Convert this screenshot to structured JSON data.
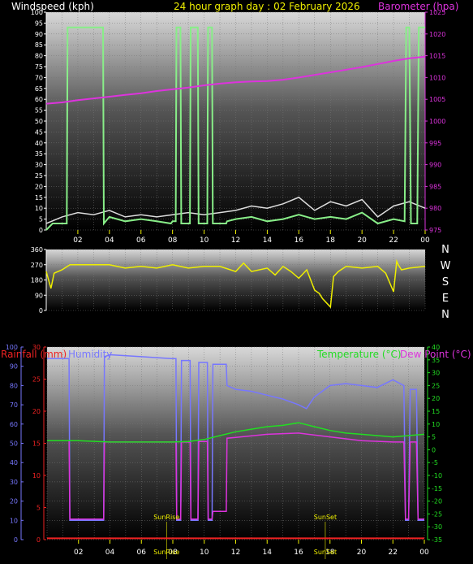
{
  "header": {
    "left": "Windspeed (kph)",
    "center": "24 hour graph day : 02 February 2026",
    "right": "Barometer (hpa)"
  },
  "lower_header": {
    "rainfall": "Rainfall (mm)",
    "humidity": "Humidity",
    "temperature": "Temperature (°C)",
    "dewpoint": "Dew Point (°C)"
  },
  "markers": {
    "sunrise": "SunRise",
    "sunset": "SunSet"
  },
  "colors": {
    "wind": "#88ee88",
    "gust": "#dddddd",
    "baro": "#dd33dd",
    "dir": "#eeee00",
    "rain": "#ee2222",
    "hum": "#7777ff",
    "temp": "#22dd22",
    "dew": "#dd33dd",
    "grid": "#555555"
  },
  "chart_data": [
    {
      "type": "line",
      "title": "24 hour graph day : 02 February 2026",
      "xlabel": "",
      "x_ticks": [
        "02",
        "04",
        "06",
        "08",
        "10",
        "12",
        "14",
        "16",
        "18",
        "20",
        "22",
        "00"
      ],
      "x_range": [
        0,
        24
      ],
      "y_left": {
        "label": "Windspeed (kph)",
        "range": [
          0,
          100
        ],
        "ticks": [
          0,
          5,
          10,
          15,
          20,
          25,
          30,
          35,
          40,
          45,
          50,
          55,
          60,
          65,
          70,
          75,
          80,
          85,
          90,
          95,
          100
        ]
      },
      "y_right": {
        "label": "Barometer (hpa)",
        "range": [
          975,
          1025
        ],
        "ticks": [
          975,
          980,
          985,
          990,
          995,
          1000,
          1005,
          1010,
          1015,
          1020,
          1025
        ]
      },
      "grid": true,
      "series": [
        {
          "name": "Windspeed (kph)",
          "axis": "left",
          "color": "#88ee88",
          "x": [
            0,
            0.4,
            1.3,
            1.35,
            3.6,
            3.65,
            4.0,
            5.0,
            6.0,
            7.0,
            7.9,
            8.0,
            8.2,
            8.25,
            8.5,
            8.55,
            9.1,
            9.15,
            9.6,
            9.65,
            10.2,
            10.25,
            10.5,
            10.55,
            11.4,
            11.45,
            12,
            13,
            14,
            15,
            16,
            17,
            18,
            19,
            20,
            21,
            22,
            22.7,
            22.8,
            23.0,
            23.1,
            23.5,
            23.6,
            24
          ],
          "y": [
            0,
            3,
            3,
            93,
            93,
            3,
            6,
            4,
            5,
            4,
            3,
            4,
            4,
            93,
            93,
            3,
            3,
            93,
            93,
            3,
            3,
            93,
            93,
            3,
            3,
            4,
            5,
            6,
            4,
            5,
            7,
            5,
            6,
            5,
            8,
            3,
            5,
            4,
            93,
            93,
            3,
            3,
            93,
            93
          ]
        },
        {
          "name": "Gust",
          "axis": "left",
          "color": "#dddddd",
          "x": [
            0,
            1,
            2,
            3,
            4,
            5,
            6,
            7,
            8,
            9,
            10,
            11,
            12,
            13,
            14,
            15,
            16,
            17,
            18,
            19,
            20,
            21,
            22,
            23,
            24
          ],
          "y": [
            3,
            6,
            8,
            7,
            9,
            6,
            7,
            6,
            7,
            8,
            7,
            8,
            9,
            11,
            10,
            12,
            15,
            9,
            13,
            11,
            14,
            6,
            11,
            13,
            10
          ]
        },
        {
          "name": "Barometer (hpa)",
          "axis": "right",
          "color": "#dd33dd",
          "x": [
            0,
            1,
            2,
            3,
            4,
            5,
            6,
            7,
            8,
            9,
            10,
            11,
            12,
            13,
            14,
            15,
            16,
            17,
            18,
            19,
            20,
            21,
            22,
            23,
            24
          ],
          "y": [
            1004.0,
            1004.3,
            1004.8,
            1005.2,
            1005.6,
            1006.0,
            1006.4,
            1006.9,
            1007.3,
            1007.7,
            1008.2,
            1008.6,
            1008.9,
            1009.1,
            1009.2,
            1009.5,
            1010.0,
            1010.6,
            1011.2,
            1011.8,
            1012.4,
            1013.1,
            1013.8,
            1014.4,
            1014.8
          ]
        }
      ]
    },
    {
      "type": "line",
      "title": "",
      "x_range": [
        0,
        24
      ],
      "y_left": {
        "label": "",
        "range": [
          0,
          360
        ],
        "ticks": [
          0,
          90,
          180,
          270,
          360
        ]
      },
      "y_right_labels": [
        "N",
        "W",
        "S",
        "E",
        "N"
      ],
      "grid": true,
      "series": [
        {
          "name": "",
          "color": "#eeee00",
          "x": [
            0,
            0.3,
            0.5,
            1.0,
            1.5,
            2.0,
            3.0,
            4.0,
            5.0,
            6.0,
            7.0,
            8.0,
            9.0,
            10.0,
            11.0,
            12.0,
            12.5,
            13.0,
            14.0,
            14.5,
            15.0,
            15.5,
            16.0,
            16.5,
            17.0,
            17.3,
            17.5,
            17.8,
            18.0,
            18.2,
            18.5,
            19.0,
            20.0,
            21.0,
            21.5,
            22.0,
            22.2,
            22.3,
            22.5,
            23.0,
            24.0
          ],
          "y": [
            230,
            130,
            220,
            240,
            270,
            270,
            270,
            270,
            250,
            260,
            250,
            270,
            250,
            260,
            260,
            230,
            280,
            230,
            250,
            210,
            260,
            230,
            190,
            240,
            120,
            100,
            70,
            40,
            20,
            200,
            230,
            260,
            250,
            260,
            220,
            110,
            290,
            270,
            240,
            250,
            260
          ]
        }
      ]
    },
    {
      "type": "line",
      "title": "",
      "x_ticks": [
        "02",
        "04",
        "06",
        "08",
        "10",
        "12",
        "14",
        "16",
        "18",
        "20",
        "22",
        "00"
      ],
      "x_range": [
        0,
        24
      ],
      "y_left_outer": {
        "label": "Humidity",
        "range": [
          0,
          100
        ],
        "ticks": [
          0,
          10,
          20,
          30,
          40,
          50,
          60,
          70,
          80,
          90,
          100
        ]
      },
      "y_left_inner": {
        "label": "Rainfall (mm)",
        "range": [
          0,
          30
        ],
        "ticks": [
          0,
          5,
          10,
          15,
          20,
          25,
          30
        ]
      },
      "y_right": {
        "label": "Temperature (°C)",
        "range": [
          -35,
          40
        ],
        "ticks": [
          -35,
          -30,
          -25,
          -20,
          -15,
          -10,
          -5,
          0,
          5,
          10,
          15,
          20,
          25,
          30,
          35,
          40
        ]
      },
      "grid": true,
      "annotations": [
        {
          "text": "SunRise",
          "x": 7.6
        },
        {
          "text": "SunSet",
          "x": 17.7
        }
      ],
      "series": [
        {
          "name": "Rainfall (mm)",
          "axis": "inner",
          "color": "#ee2222",
          "x": [
            0,
            24
          ],
          "y": [
            0.2,
            0.2
          ]
        },
        {
          "name": "Humidity",
          "axis": "outer",
          "color": "#7777ff",
          "x": [
            0,
            1.4,
            1.45,
            3.6,
            3.65,
            4.0,
            6.0,
            7.9,
            8.0,
            8.2,
            8.25,
            8.5,
            8.55,
            9.1,
            9.15,
            9.6,
            9.65,
            10.2,
            10.25,
            10.5,
            10.55,
            11.4,
            11.45,
            12,
            13,
            14,
            15,
            16,
            16.5,
            17,
            18,
            19,
            20,
            21,
            22,
            22.7,
            22.8,
            23.0,
            23.1,
            23.5,
            23.6,
            24
          ],
          "y": [
            94,
            94,
            10,
            10,
            95,
            96,
            95,
            94,
            94,
            94,
            10,
            10,
            93,
            93,
            10,
            10,
            92,
            92,
            10,
            10,
            91,
            91,
            80,
            78,
            77,
            75,
            73,
            70,
            68,
            74,
            80,
            81,
            80,
            79,
            83,
            80,
            10,
            10,
            78,
            78,
            10,
            10
          ]
        },
        {
          "name": "Temperature (°C)",
          "axis": "right",
          "color": "#22dd22",
          "x": [
            0,
            2,
            4,
            6,
            8,
            9,
            10,
            11,
            12,
            13,
            14,
            15,
            16,
            17,
            18,
            19,
            20,
            21,
            22,
            23,
            24
          ],
          "y": [
            3.5,
            3.5,
            3.0,
            3.0,
            3.0,
            3.2,
            4.0,
            5.5,
            7.0,
            8.0,
            9.0,
            9.5,
            10.5,
            9.0,
            7.5,
            6.5,
            6.0,
            5.5,
            5.0,
            5.5,
            6.0
          ]
        },
        {
          "name": "Dew Point (°C)",
          "axis": "right",
          "color": "#dd33dd",
          "x": [
            0,
            1.4,
            1.45,
            3.6,
            3.65,
            6,
            8,
            8.2,
            8.25,
            8.5,
            8.55,
            9.1,
            9.15,
            9.6,
            9.65,
            10.2,
            10.25,
            10.5,
            10.55,
            11.4,
            11.45,
            12,
            14,
            16,
            18,
            20,
            22,
            22.7,
            22.8,
            23.0,
            23.1,
            23.5,
            23.6,
            24
          ],
          "y": [
            3.5,
            3.5,
            -27,
            -27,
            3.0,
            3.0,
            3.0,
            3.0,
            -27,
            -27,
            3.0,
            3.0,
            -27,
            -27,
            3.2,
            3.2,
            -27,
            -27,
            -24,
            -24,
            4.5,
            4.8,
            6.0,
            6.5,
            5.0,
            3.5,
            3.0,
            3.0,
            -27,
            -27,
            3.0,
            3.0,
            -27,
            -27
          ]
        }
      ]
    }
  ]
}
